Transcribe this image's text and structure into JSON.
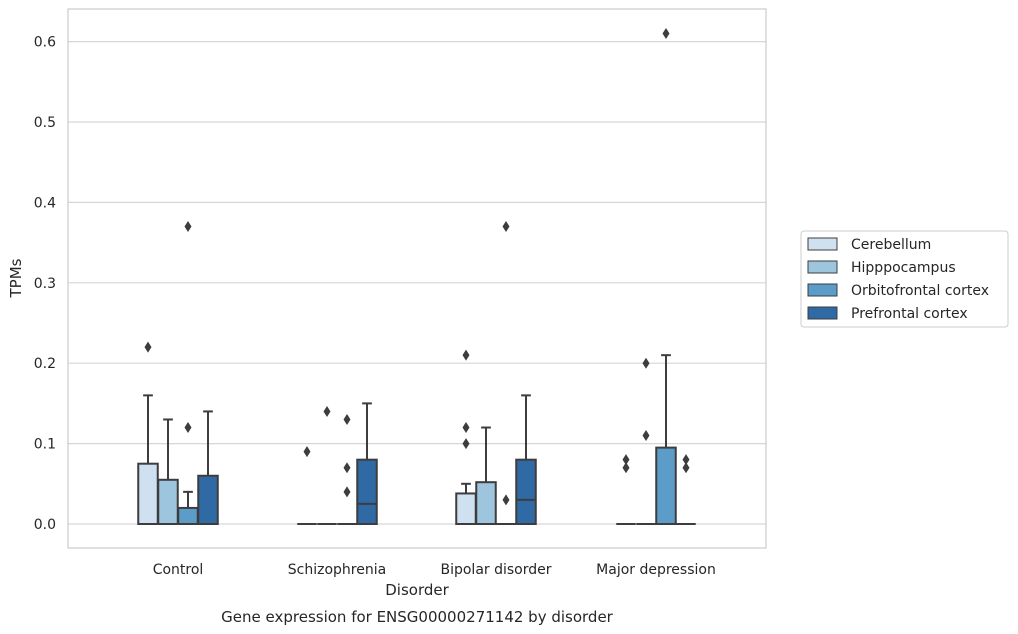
{
  "chart_data": {
    "type": "box",
    "title": "Gene expression for ENSG00000271142 by disorder",
    "xlabel": "Disorder",
    "ylabel": "TPMs",
    "ylim": [
      -0.03,
      0.64
    ],
    "yticks": [
      "0.0",
      "0.1",
      "0.2",
      "0.3",
      "0.4",
      "0.5",
      "0.6"
    ],
    "ytick_values": [
      0.0,
      0.1,
      0.2,
      0.3,
      0.4,
      0.5,
      0.6
    ],
    "grid": true,
    "legend_position": "right",
    "categories": [
      "Control",
      "Schizophrenia",
      "Bipolar disorder",
      "Major depression"
    ],
    "series": [
      {
        "name": "Cerebellum",
        "color": "#cfe0f0",
        "boxes": [
          {
            "min": 0.0,
            "q1": 0.0,
            "median": 0.0,
            "q3": 0.075,
            "max": 0.16,
            "outliers": [
              0.22
            ]
          },
          {
            "min": 0.0,
            "q1": 0.0,
            "median": 0.0,
            "q3": 0.0,
            "max": 0.0,
            "outliers": [
              0.09
            ]
          },
          {
            "min": 0.0,
            "q1": 0.0,
            "median": 0.0,
            "q3": 0.038,
            "max": 0.05,
            "outliers": [
              0.1,
              0.12,
              0.21
            ]
          },
          {
            "min": 0.0,
            "q1": 0.0,
            "median": 0.0,
            "q3": 0.0,
            "max": 0.0,
            "outliers": [
              0.07,
              0.08
            ]
          }
        ]
      },
      {
        "name": "Hipppocampus",
        "color": "#9ec5de",
        "boxes": [
          {
            "min": 0.0,
            "q1": 0.0,
            "median": 0.0,
            "q3": 0.055,
            "max": 0.13,
            "outliers": []
          },
          {
            "min": 0.0,
            "q1": 0.0,
            "median": 0.0,
            "q3": 0.0,
            "max": 0.0,
            "outliers": [
              0.14
            ]
          },
          {
            "min": 0.0,
            "q1": 0.0,
            "median": 0.0,
            "q3": 0.052,
            "max": 0.12,
            "outliers": []
          },
          {
            "min": 0.0,
            "q1": 0.0,
            "median": 0.0,
            "q3": 0.0,
            "max": 0.0,
            "outliers": [
              0.11,
              0.2
            ]
          }
        ]
      },
      {
        "name": "Orbitofrontal cortex",
        "color": "#5b9cc8",
        "boxes": [
          {
            "min": 0.0,
            "q1": 0.0,
            "median": 0.0,
            "q3": 0.02,
            "max": 0.04,
            "outliers": [
              0.12,
              0.37
            ]
          },
          {
            "min": 0.0,
            "q1": 0.0,
            "median": 0.0,
            "q3": 0.0,
            "max": 0.0,
            "outliers": [
              0.04,
              0.07,
              0.13
            ]
          },
          {
            "min": 0.0,
            "q1": 0.0,
            "median": 0.0,
            "q3": 0.0,
            "max": 0.0,
            "outliers": [
              0.03,
              0.37
            ]
          },
          {
            "min": 0.0,
            "q1": 0.0,
            "median": 0.0,
            "q3": 0.095,
            "max": 0.21,
            "outliers": [
              0.61
            ]
          }
        ]
      },
      {
        "name": "Prefrontal cortex",
        "color": "#2f6aa5",
        "boxes": [
          {
            "min": 0.0,
            "q1": 0.0,
            "median": 0.0,
            "q3": 0.06,
            "max": 0.14,
            "outliers": []
          },
          {
            "min": 0.0,
            "q1": 0.0,
            "median": 0.025,
            "q3": 0.08,
            "max": 0.15,
            "outliers": []
          },
          {
            "min": 0.0,
            "q1": 0.0,
            "median": 0.03,
            "q3": 0.08,
            "max": 0.16,
            "outliers": []
          },
          {
            "min": 0.0,
            "q1": 0.0,
            "median": 0.0,
            "q3": 0.0,
            "max": 0.0,
            "outliers": [
              0.07,
              0.08
            ]
          }
        ]
      }
    ]
  }
}
